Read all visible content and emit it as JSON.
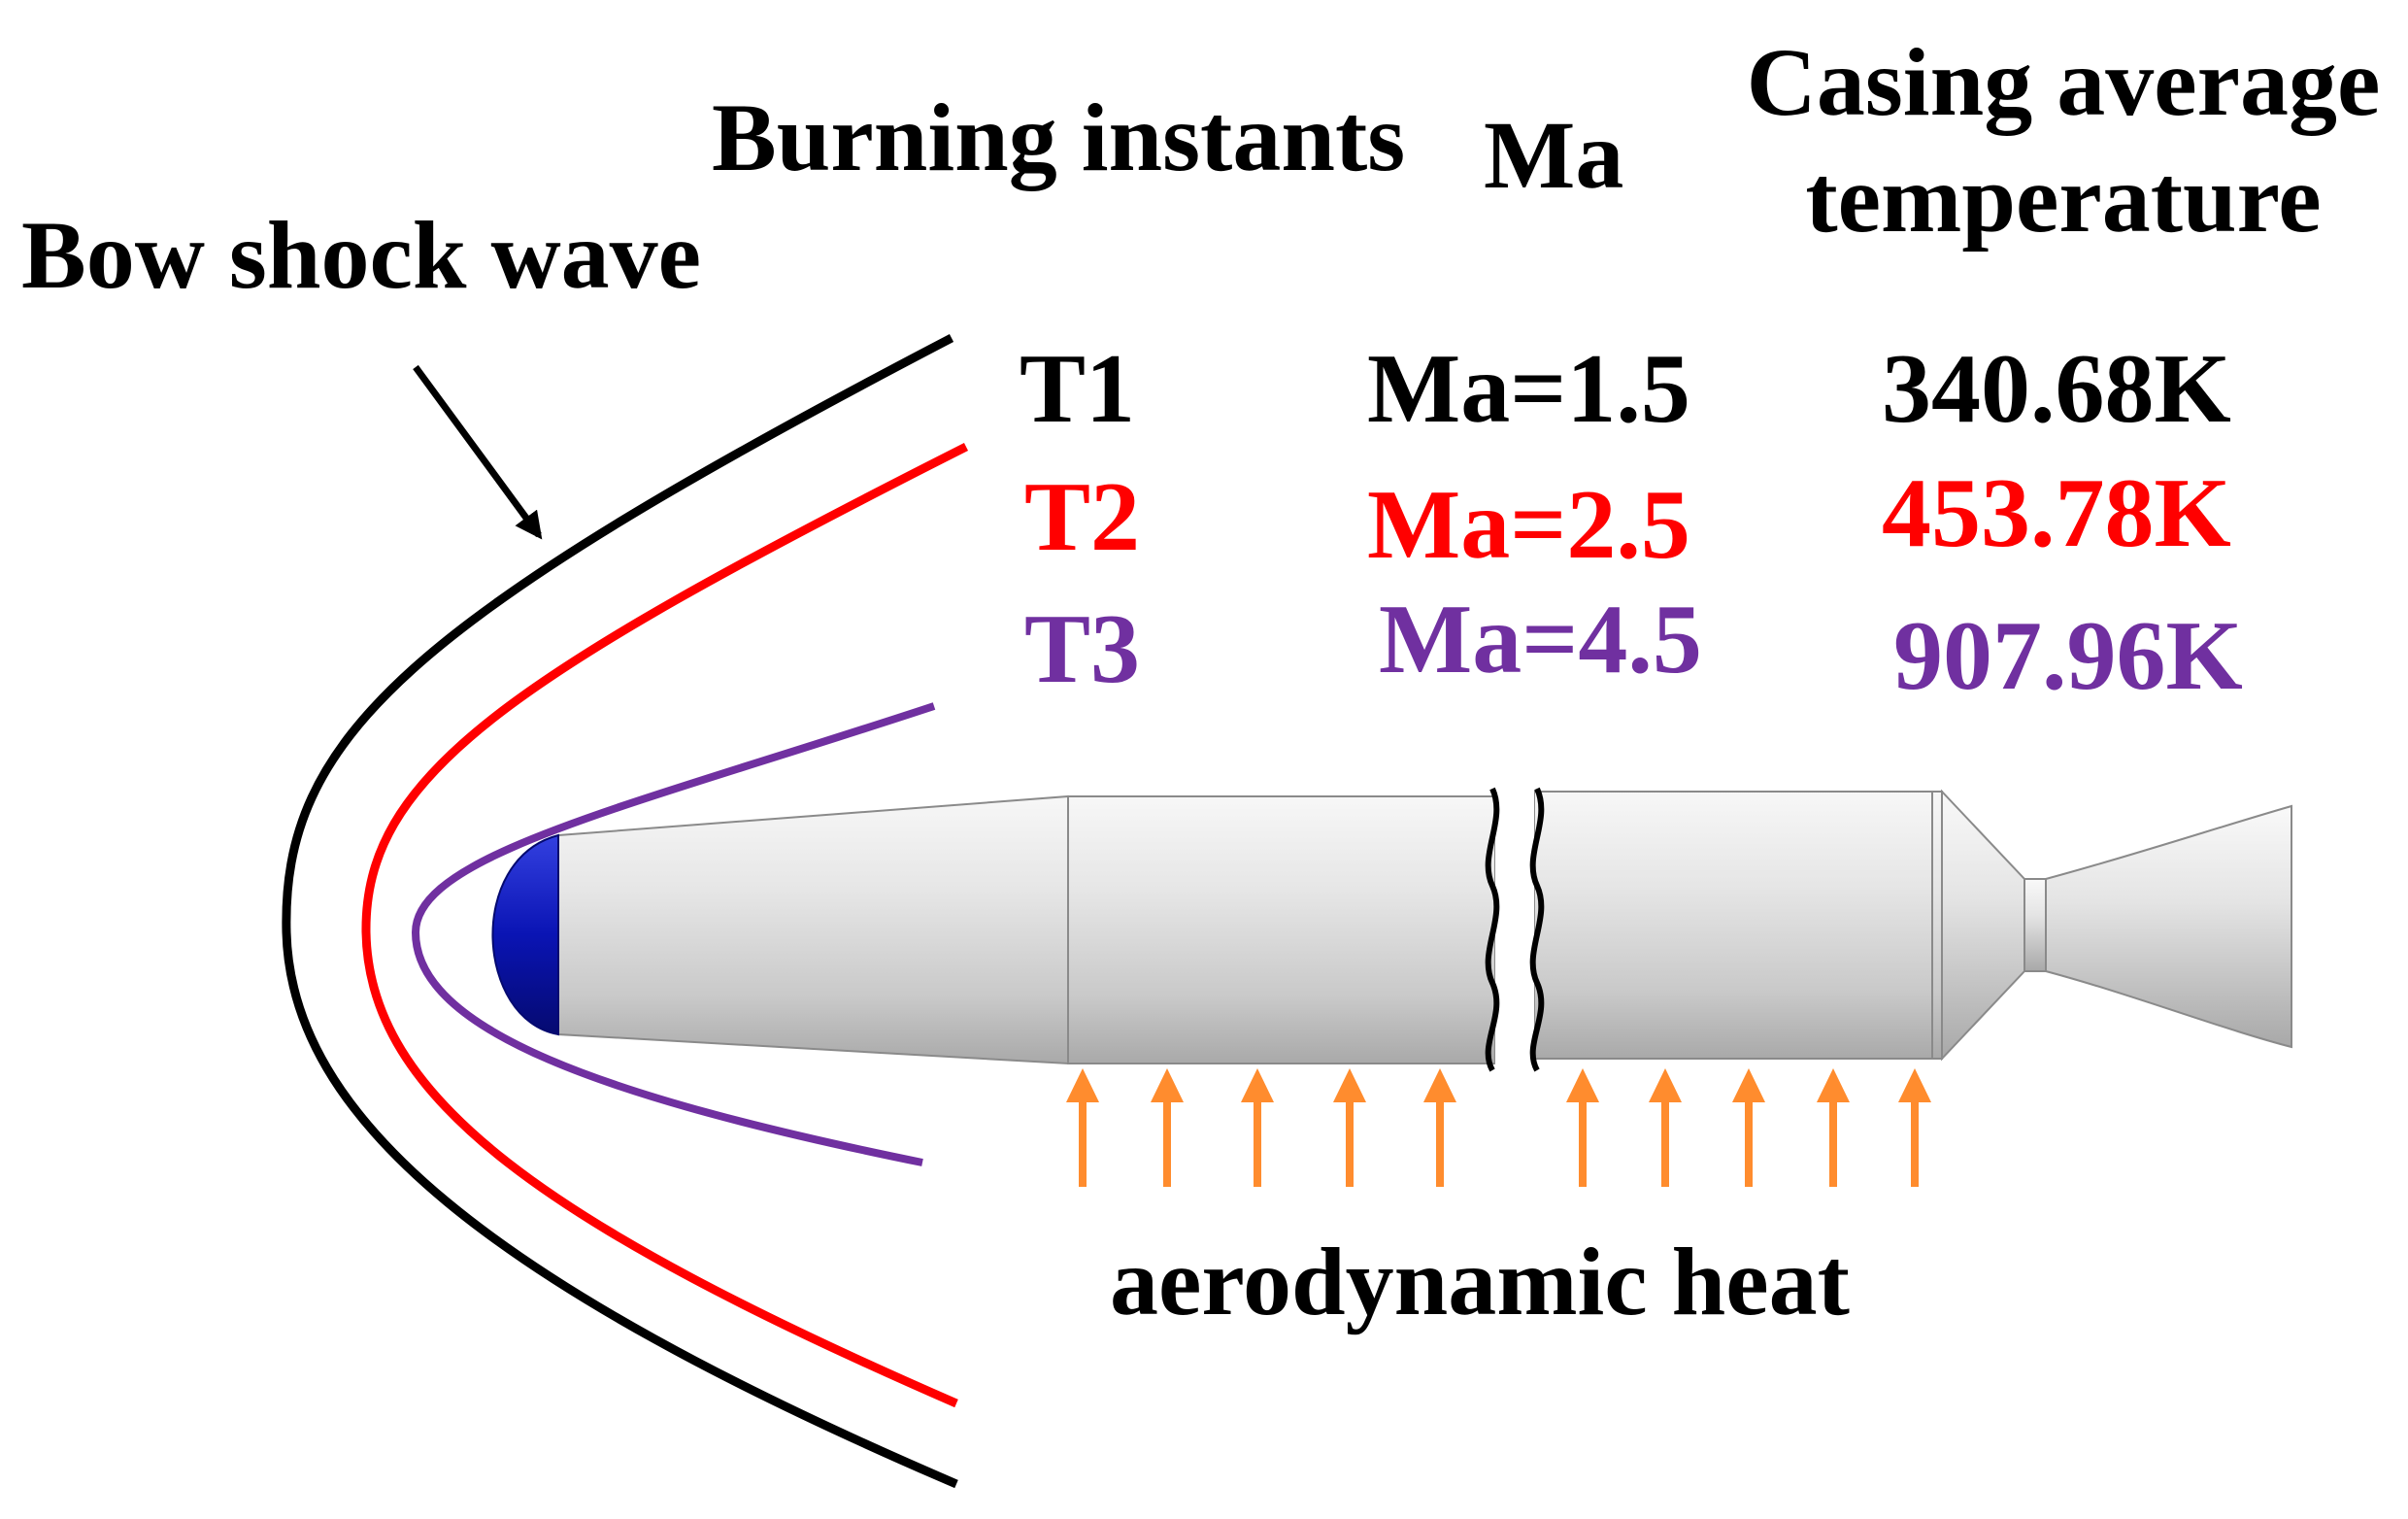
{
  "labels": {
    "bow_shock": "Bow shock wave",
    "aero_heat": "aerodynamic heat"
  },
  "header": {
    "instants": "Burning instants",
    "ma": "Ma",
    "casing_line1": "Casing average",
    "casing_line2": "temperature"
  },
  "rows": [
    {
      "instant": "T1",
      "mach": "Ma=1.5",
      "temperature": "340.68K",
      "color": "#000000"
    },
    {
      "instant": "T2",
      "mach": "Ma=2.5",
      "temperature": "453.78K",
      "color": "#ff0000"
    },
    {
      "instant": "T3",
      "mach": "Ma=4.5",
      "temperature": "907.96K",
      "color": "#7030a0"
    }
  ],
  "colors": {
    "shock_t1": "#000000",
    "shock_t2": "#ff0000",
    "shock_t3": "#7030a0",
    "nose_cap": "#0a14b4",
    "body": "#d8d8d8",
    "heat_arrow": "#ff8c2e"
  },
  "icons": {
    "pointer": "arrow-icon",
    "heat": "up-arrow-icon"
  }
}
